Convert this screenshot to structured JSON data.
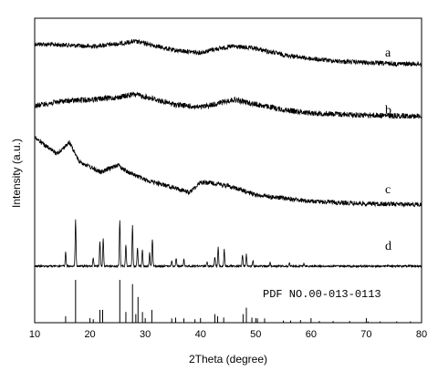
{
  "chart_data": {
    "type": "line",
    "xlabel": "2Theta (degree)",
    "ylabel": "Intensity (a.u.)",
    "xlim": [
      10,
      80
    ],
    "xticks": [
      10,
      20,
      30,
      40,
      50,
      60,
      70,
      80
    ],
    "yticks_shown": false,
    "grid": false,
    "series": [
      {
        "name": "a",
        "profile": [
          [
            10,
            0.7
          ],
          [
            15,
            0.67
          ],
          [
            20,
            0.62
          ],
          [
            25,
            0.7
          ],
          [
            28,
            0.78
          ],
          [
            30,
            0.72
          ],
          [
            35,
            0.5
          ],
          [
            40,
            0.42
          ],
          [
            43,
            0.55
          ],
          [
            46,
            0.62
          ],
          [
            50,
            0.55
          ],
          [
            55,
            0.35
          ],
          [
            60,
            0.22
          ],
          [
            65,
            0.14
          ],
          [
            70,
            0.1
          ],
          [
            75,
            0.06
          ],
          [
            80,
            0.05
          ]
        ]
      },
      {
        "name": "b",
        "profile": [
          [
            10,
            0.35
          ],
          [
            15,
            0.5
          ],
          [
            20,
            0.55
          ],
          [
            25,
            0.62
          ],
          [
            28,
            0.72
          ],
          [
            31,
            0.6
          ],
          [
            35,
            0.4
          ],
          [
            40,
            0.3
          ],
          [
            43,
            0.42
          ],
          [
            46,
            0.55
          ],
          [
            50,
            0.4
          ],
          [
            55,
            0.22
          ],
          [
            60,
            0.12
          ],
          [
            65,
            0.08
          ],
          [
            70,
            0.05
          ],
          [
            75,
            0.03
          ],
          [
            80,
            0.02
          ]
        ]
      },
      {
        "name": "c",
        "profile": [
          [
            10,
            0.92
          ],
          [
            12,
            0.8
          ],
          [
            14,
            0.7
          ],
          [
            16.3,
            0.85
          ],
          [
            18,
            0.6
          ],
          [
            22,
            0.45
          ],
          [
            25,
            0.55
          ],
          [
            27,
            0.45
          ],
          [
            30,
            0.35
          ],
          [
            35,
            0.25
          ],
          [
            38,
            0.18
          ],
          [
            40,
            0.32
          ],
          [
            43,
            0.3
          ],
          [
            46,
            0.25
          ],
          [
            50,
            0.15
          ],
          [
            60,
            0.06
          ],
          [
            70,
            0.03
          ],
          [
            80,
            0.02
          ]
        ]
      },
      {
        "name": "d",
        "peaks": [
          [
            15.6,
            0.25
          ],
          [
            17.4,
            0.85
          ],
          [
            20.6,
            0.15
          ],
          [
            21.8,
            0.45
          ],
          [
            22.4,
            0.5
          ],
          [
            25.4,
            0.85
          ],
          [
            26.5,
            0.4
          ],
          [
            27.7,
            0.75
          ],
          [
            28.6,
            0.35
          ],
          [
            29.5,
            0.3
          ],
          [
            30.8,
            0.25
          ],
          [
            31.3,
            0.5
          ],
          [
            34.8,
            0.1
          ],
          [
            35.6,
            0.15
          ],
          [
            37.0,
            0.12
          ],
          [
            41.2,
            0.08
          ],
          [
            42.6,
            0.18
          ],
          [
            43.2,
            0.35
          ],
          [
            44.3,
            0.3
          ],
          [
            47.6,
            0.2
          ],
          [
            48.3,
            0.22
          ],
          [
            49.5,
            0.1
          ],
          [
            52.6,
            0.06
          ],
          [
            56.1,
            0.05
          ],
          [
            58.7,
            0.04
          ]
        ]
      },
      {
        "name": "PDF NO.00-013-0113",
        "type": "reference-sticks",
        "sticks": [
          [
            15.6,
            0.15
          ],
          [
            17.4,
            1.0
          ],
          [
            20.6,
            0.08
          ],
          [
            21.8,
            0.3
          ],
          [
            22.3,
            0.3
          ],
          [
            25.4,
            1.0
          ],
          [
            26.5,
            0.25
          ],
          [
            27.7,
            0.9
          ],
          [
            28.3,
            0.2
          ],
          [
            28.7,
            0.6
          ],
          [
            29.5,
            0.25
          ],
          [
            31.2,
            0.3
          ],
          [
            34.8,
            0.1
          ],
          [
            35.5,
            0.12
          ],
          [
            37.0,
            0.1
          ],
          [
            39.0,
            0.08
          ],
          [
            42.6,
            0.2
          ],
          [
            43.1,
            0.15
          ],
          [
            44.2,
            0.12
          ],
          [
            47.7,
            0.2
          ],
          [
            48.3,
            0.35
          ],
          [
            49.3,
            0.12
          ],
          [
            50.3,
            0.1
          ],
          [
            51.6,
            0.1
          ],
          [
            55.0,
            0.05
          ],
          [
            56.3,
            0.05
          ],
          [
            58.1,
            0.06
          ],
          [
            61.5,
            0.04
          ],
          [
            64.0,
            0.04
          ],
          [
            67.0,
            0.04
          ],
          [
            70.3,
            0.03
          ],
          [
            72.5,
            0.03
          ],
          [
            75.5,
            0.03
          ],
          [
            78.0,
            0.03
          ]
        ]
      }
    ]
  }
}
